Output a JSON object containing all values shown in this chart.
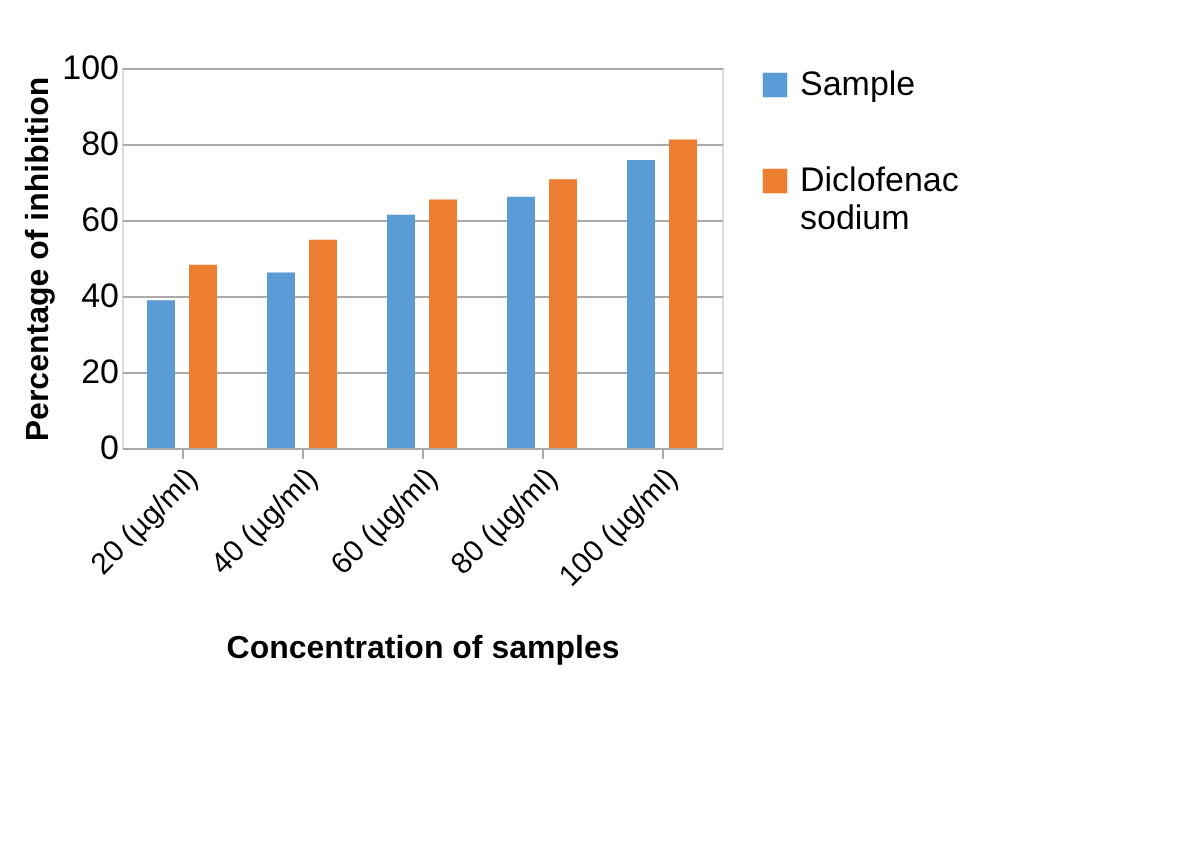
{
  "chart_data": {
    "type": "bar",
    "xlabel": "Concentration of samples",
    "ylabel": "Percentage of inhibition",
    "categories": [
      "20 (µg/ml)",
      "40 (µg/ml)",
      "60 (µg/ml)",
      "80 (µg/ml)",
      "100 (µg/ml)"
    ],
    "series": [
      {
        "name": "Sample",
        "color": "#5b9bd5",
        "values": [
          38.9,
          46.2,
          61.4,
          66.1,
          75.8
        ]
      },
      {
        "name": "Diclofenac sodium",
        "color": "#ed7d31",
        "values": [
          48.2,
          54.8,
          65.4,
          70.7,
          81.2
        ]
      }
    ],
    "ylim": [
      0,
      100
    ],
    "yticks": [
      0,
      20,
      40,
      60,
      80,
      100
    ],
    "grid": "y",
    "legend": "right"
  }
}
